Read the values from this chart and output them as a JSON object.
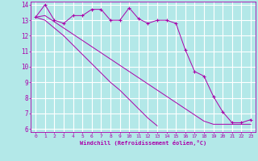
{
  "xlabel": "Windchill (Refroidissement éolien,°C)",
  "background_color": "#b3e8e8",
  "grid_color": "#ffffff",
  "line_color": "#aa00aa",
  "x_hours": [
    0,
    1,
    2,
    3,
    4,
    5,
    6,
    7,
    8,
    9,
    10,
    11,
    12,
    13,
    14,
    15,
    16,
    17,
    18,
    19,
    20,
    21,
    22,
    23
  ],
  "series1": [
    13.2,
    14.0,
    13.0,
    12.8,
    13.3,
    13.3,
    13.7,
    13.7,
    13.0,
    13.0,
    13.8,
    13.1,
    12.8,
    13.0,
    13.0,
    12.8,
    11.1,
    9.7,
    9.4,
    8.1,
    7.1,
    6.4,
    6.4,
    6.6
  ],
  "series2": [
    13.2,
    13.0,
    12.5,
    12.0,
    11.4,
    10.8,
    10.2,
    9.6,
    9.0,
    8.5,
    7.9,
    7.3,
    6.7,
    6.2,
    null,
    null,
    null,
    null,
    null,
    null,
    null,
    null,
    null,
    null
  ],
  "series3": [
    13.2,
    13.3,
    12.9,
    12.5,
    12.1,
    11.7,
    11.3,
    10.9,
    10.5,
    10.1,
    9.7,
    9.3,
    8.9,
    8.5,
    8.1,
    7.7,
    7.3,
    6.9,
    6.5,
    6.3,
    6.3,
    6.3,
    6.3,
    6.3
  ],
  "ylim": [
    5.8,
    14.2
  ],
  "yticks": [
    6,
    7,
    8,
    9,
    10,
    11,
    12,
    13,
    14
  ],
  "xlim": [
    -0.5,
    23.5
  ]
}
